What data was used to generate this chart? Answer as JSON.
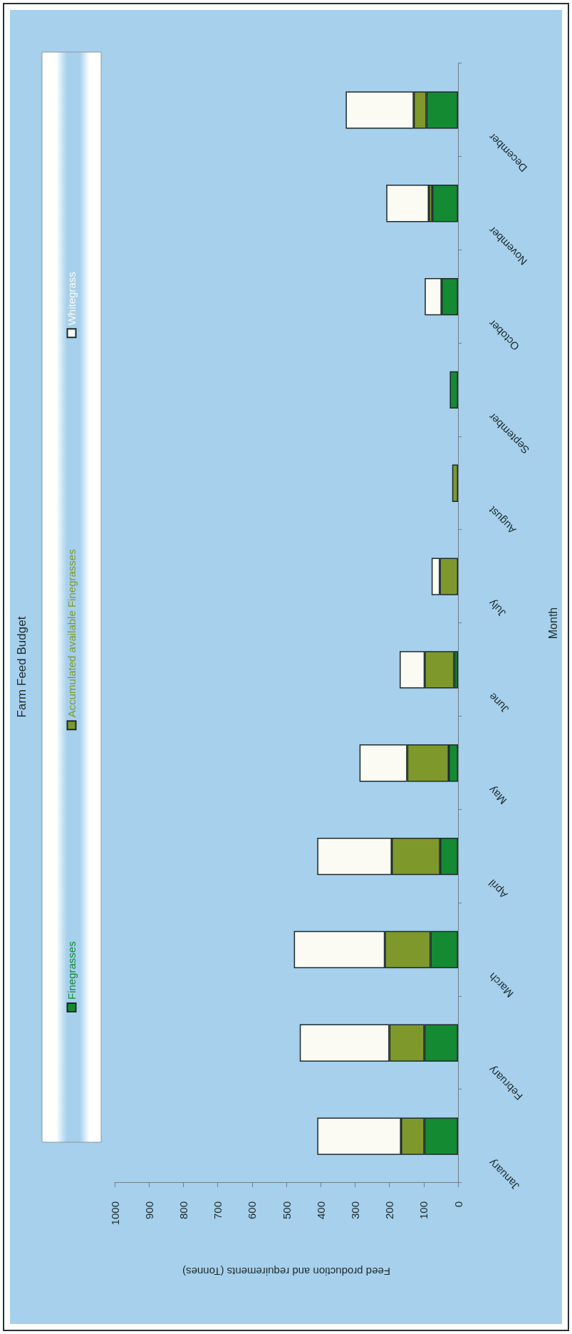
{
  "chart_data": {
    "type": "bar",
    "orientation": "horizontal",
    "title": "Farm Feed Budget",
    "xlabel": "Feed production and requirements (Tonnes)",
    "ylabel": "Month",
    "categories": [
      "December",
      "November",
      "October",
      "September",
      "August",
      "July",
      "June",
      "May",
      "April",
      "March",
      "February",
      "January"
    ],
    "series": [
      {
        "name": "Finegrasses",
        "color": "#148a33",
        "values": [
          92,
          75,
          48,
          24,
          null,
          null,
          11,
          27,
          52,
          80,
          98,
          98
        ]
      },
      {
        "name": "Accumulated available Finegrasses",
        "color": "#7f982c",
        "values": [
          37,
          10,
          null,
          null,
          17,
          53,
          86,
          121,
          141,
          133,
          102,
          68
        ]
      },
      {
        "name": "Whitegrass",
        "color": "#fbfbf4",
        "values": [
          198,
          124,
          49,
          null,
          null,
          24,
          73,
          139,
          217,
          265,
          261,
          244
        ]
      }
    ],
    "stacked": true,
    "xlim": [
      1000,
      0
    ],
    "xticks": [
      1000,
      900,
      800,
      700,
      600,
      500,
      400,
      300,
      200,
      100,
      0
    ],
    "legend": "left"
  }
}
